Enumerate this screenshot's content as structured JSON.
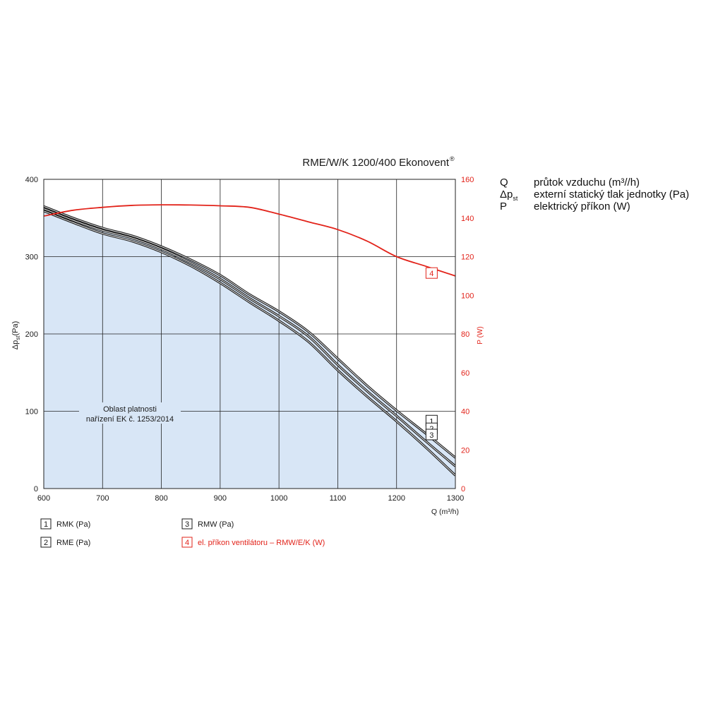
{
  "chart_data": {
    "type": "line",
    "title": "RME/W/K 1200/400 Ekonovent",
    "title_mark": "®",
    "xlabel": "Q (m³/h)",
    "ylabel": "Δp",
    "ylabel_sub": "st",
    "ylabel_unit": "(Pa)",
    "y2label": "P (W)",
    "xlim": [
      600,
      1300
    ],
    "ylim": [
      0,
      400
    ],
    "y2lim": [
      0,
      160
    ],
    "xticks": [
      "600",
      "700",
      "800",
      "900",
      "1000",
      "1100",
      "1200",
      "1300"
    ],
    "yticks": [
      "0",
      "100",
      "200",
      "300",
      "400"
    ],
    "y2ticks": [
      "0",
      "20",
      "40",
      "60",
      "80",
      "100",
      "120",
      "140",
      "160"
    ],
    "grid": true,
    "region_label_line1": "Oblast platnosti",
    "region_label_line2": "nařízení EK č. 1253/2014",
    "series": [
      {
        "name": "RMK (Pa)",
        "marker": "1",
        "axis": "left",
        "color": "#1a1a1a",
        "x": [
          600,
          650,
          700,
          750,
          800,
          850,
          900,
          950,
          1000,
          1050,
          1100,
          1150,
          1200,
          1250,
          1300
        ],
        "y": [
          365,
          350,
          337,
          327,
          313,
          296,
          276,
          251,
          229,
          203,
          168,
          133,
          101,
          71,
          40
        ]
      },
      {
        "name": "RME (Pa)",
        "marker": "2",
        "axis": "left",
        "color": "#1a1a1a",
        "x": [
          600,
          650,
          700,
          750,
          800,
          850,
          900,
          950,
          1000,
          1050,
          1100,
          1150,
          1200,
          1250,
          1300
        ],
        "y": [
          362,
          347,
          334,
          324,
          310,
          292,
          271,
          246,
          223,
          197,
          160,
          126,
          94,
          61,
          29
        ]
      },
      {
        "name": "RMW (Pa)",
        "marker": "3",
        "axis": "left",
        "color": "#1a1a1a",
        "x": [
          600,
          650,
          700,
          750,
          800,
          850,
          900,
          950,
          1000,
          1050,
          1100,
          1150,
          1200,
          1250,
          1300
        ],
        "y": [
          359,
          344,
          330,
          320,
          306,
          288,
          266,
          241,
          217,
          190,
          153,
          119,
          87,
          53,
          17
        ]
      },
      {
        "name": "el. příkon ventilátoru – RMW/E/K (W)",
        "marker": "4",
        "axis": "right",
        "color": "#e2231a",
        "x": [
          600,
          650,
          700,
          750,
          800,
          850,
          900,
          950,
          1000,
          1050,
          1100,
          1150,
          1200,
          1250,
          1300
        ],
        "y": [
          141,
          144,
          145.5,
          146.5,
          146.8,
          146.7,
          146.3,
          145.5,
          142,
          138,
          134,
          128,
          120,
          115,
          110
        ]
      }
    ]
  },
  "legend_right": {
    "rows": [
      {
        "sym": "Q",
        "sym_sub": "",
        "desc": "průtok vzduchu (m³//h)"
      },
      {
        "sym": "Δp",
        "sym_sub": "st",
        "desc": "externí statický tlak jednotky (Pa)"
      },
      {
        "sym": "P",
        "sym_sub": "",
        "desc": "elektrický příkon (W)"
      }
    ]
  },
  "colors": {
    "region_fill": "#d8e6f6",
    "grid": "#222222",
    "accent_red": "#e2231a",
    "curve_black": "#1a1a1a"
  }
}
